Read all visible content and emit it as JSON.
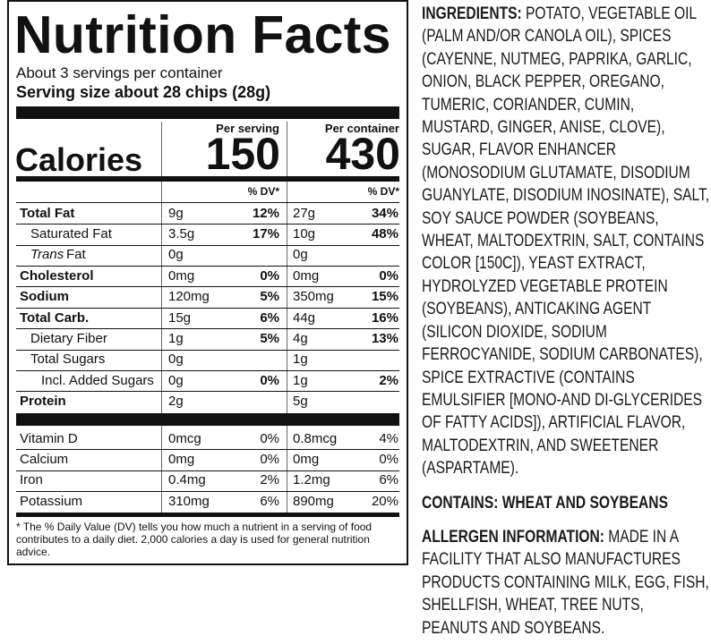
{
  "label": {
    "title": "Nutrition Facts",
    "servings": "About 3 servings per container",
    "serving_size": "Serving size about 28 chips (28g)",
    "columns": [
      "Per serving",
      "Per container"
    ],
    "calories_label": "Calories",
    "calories": [
      "150",
      "430"
    ],
    "dv_header": [
      "% DV*",
      "% DV*"
    ],
    "nutrients": [
      {
        "name": "Total Fat",
        "serving": [
          "9g",
          "12%"
        ],
        "container": [
          "27g",
          "34%"
        ]
      },
      {
        "name": "Saturated Fat",
        "serving": [
          "3.5g",
          "17%"
        ],
        "container": [
          "10g",
          "48%"
        ]
      },
      {
        "name_italic": "Trans",
        "name": "Fat",
        "serving": [
          "0g"
        ],
        "container": [
          "0g"
        ]
      },
      {
        "name": "Cholesterol",
        "serving": [
          "0mg",
          "0%"
        ],
        "container": [
          "0mg",
          "0%"
        ]
      },
      {
        "name": "Sodium",
        "serving": [
          "120mg",
          "5%"
        ],
        "container": [
          "350mg",
          "15%"
        ]
      },
      {
        "name": "Total Carb.",
        "serving": [
          "15g",
          "6%"
        ],
        "container": [
          "44g",
          "16%"
        ]
      },
      {
        "name": "Dietary Fiber",
        "serving": [
          "1g",
          "5%"
        ],
        "container": [
          "4g",
          "13%"
        ]
      },
      {
        "name": "Total Sugars",
        "serving": [
          "0g"
        ],
        "container": [
          "1g"
        ]
      },
      {
        "name": "Incl. Added Sugars",
        "serving": [
          "0g",
          "0%"
        ],
        "container": [
          "1g",
          "2%"
        ]
      },
      {
        "name": "Protein",
        "serving": [
          "2g"
        ],
        "container": [
          "5g"
        ]
      }
    ],
    "vitamins": [
      {
        "name": "Vitamin D",
        "serving": [
          "0mcg",
          "0%"
        ],
        "container": [
          "0.8mcg",
          "4%"
        ]
      },
      {
        "name": "Calcium",
        "serving": [
          "0mg",
          "0%"
        ],
        "container": [
          "0mg",
          "0%"
        ]
      },
      {
        "name": "Iron",
        "serving": [
          "0.4mg",
          "2%"
        ],
        "container": [
          "1.2mg",
          "6%"
        ]
      },
      {
        "name": "Potassium",
        "serving": [
          "310mg",
          "6%"
        ],
        "container": [
          "890mg",
          "20%"
        ]
      }
    ],
    "footnote": "* The % Daily Value (DV) tells you how much a nutrient in a serving of food contributes to a daily diet. 2,000 calories a day is used for general nutrition advice."
  },
  "ingredients": {
    "label": "INGREDIENTS:",
    "text": "POTATO, VEGETABLE OIL (PALM AND/OR CANOLA OIL), SPICES (CAYENNE, NUTMEG, PAPRIKA, GARLIC, ONION, BLACK PEPPER, OREGANO, TUMERIC, CORIANDER, CUMIN, MUSTARD, GINGER, ANISE, CLOVE), SUGAR, FLAVOR ENHANCER (MONOSODIUM GLUTAMATE, DISODIUM GUANYLATE, DISODIUM INOSINATE), SALT, SOY SAUCE POWDER (SOYBEANS, WHEAT, MALTODEXTRIN, SALT, CONTAINS COLOR [150C]), YEAST EXTRACT, HYDROLYZED VEGETABLE PROTEIN (SOYBEANS), ANTICAKING AGENT (SILICON DIOXIDE, SODIUM FERROCYANIDE, SODIUM CARBONATES), SPICE EXTRACTIVE (CONTAINS EMULSIFIER [MONO-AND DI-GLYCERIDES OF FATTY ACIDS]), ARTIFICIAL FLAVOR, MALTODEXTRIN, AND SWEETENER (ASPARTAME)."
  },
  "contains": "CONTAINS: WHEAT AND SOYBEANS",
  "allergen": {
    "label": "ALLERGEN INFORMATION:",
    "text": "MADE IN A FACILITY THAT ALSO MANUFACTURES PRODUCTS CONTAINING MILK, EGG, FISH, SHELLFISH, WHEAT, TREE NUTS, PEANUTS AND SOYBEANS."
  }
}
